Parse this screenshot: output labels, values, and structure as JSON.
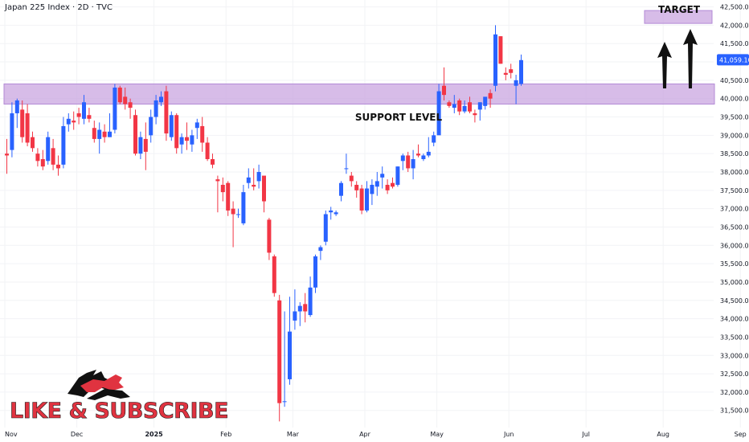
{
  "header": {
    "title": "Japan 225 Index · 2D · TVC"
  },
  "colors": {
    "up": "#2962ff",
    "down": "#f23645",
    "zone": "#c9a6e0",
    "zone_border": "#b38ad6",
    "price_badge": "#2962ff"
  },
  "annotations": {
    "support_label": "SUPPORT LEVEL",
    "target_label": "TARGET",
    "brand_text": "LIKE & SUBSCRIBE",
    "brand_logo": "bull-bear-logo"
  },
  "chart_data": {
    "type": "candlestick",
    "title": "Japan 225 Index · 2D · TVC",
    "ylim": [
      31100,
      42600
    ],
    "y_ticks": [
      31500,
      32000,
      32500,
      33000,
      33500,
      34000,
      34500,
      35000,
      35500,
      36000,
      36500,
      37000,
      37500,
      38000,
      38500,
      39000,
      39500,
      40000,
      40500,
      41000,
      41500,
      42000,
      42500
    ],
    "y_tick_labels": [
      "31,500.00",
      "32,000.00",
      "32,500.00",
      "33,000.00",
      "33,500.00",
      "34,000.00",
      "34,500.00",
      "35,000.00",
      "35,500.00",
      "36,000.00",
      "36,500.00",
      "37,000.00",
      "37,500.00",
      "38,000.00",
      "38,500.00",
      "39,000.00",
      "39,500.00",
      "40,000.00",
      "40,500.00",
      "41,000.00",
      "41,500.00",
      "42,000.00",
      "42,500.00"
    ],
    "x_ticks": [
      {
        "label": "Nov",
        "index": 0
      },
      {
        "label": "Dec",
        "index": 14
      },
      {
        "label": "2025",
        "index": 29
      },
      {
        "label": "Feb",
        "index": 43
      },
      {
        "label": "Mar",
        "index": 56
      },
      {
        "label": "Apr",
        "index": 70
      },
      {
        "label": "May",
        "index": 84
      },
      {
        "label": "Jun",
        "index": 98
      },
      {
        "label": "Jul",
        "index": 113
      },
      {
        "label": "Aug",
        "index": 128
      },
      {
        "label": "Sep",
        "index": 143
      }
    ],
    "last_price": 41059.1,
    "last_price_label": "41,059.10",
    "support_zone": [
      39850,
      40400
    ],
    "target_zone": [
      42050,
      42400
    ],
    "candles": [
      {
        "o": 38500,
        "h": 38900,
        "l": 37950,
        "c": 38450
      },
      {
        "o": 38600,
        "h": 39900,
        "l": 38400,
        "c": 39600
      },
      {
        "o": 39600,
        "h": 40000,
        "l": 39200,
        "c": 39950
      },
      {
        "o": 39700,
        "h": 39950,
        "l": 38800,
        "c": 38950
      },
      {
        "o": 39600,
        "h": 39850,
        "l": 38700,
        "c": 38800
      },
      {
        "o": 38950,
        "h": 39100,
        "l": 38550,
        "c": 38650
      },
      {
        "o": 38500,
        "h": 38650,
        "l": 38150,
        "c": 38300
      },
      {
        "o": 38350,
        "h": 38600,
        "l": 38050,
        "c": 38150
      },
      {
        "o": 38300,
        "h": 39100,
        "l": 38200,
        "c": 38950
      },
      {
        "o": 38650,
        "h": 38900,
        "l": 38050,
        "c": 38200
      },
      {
        "o": 38200,
        "h": 38450,
        "l": 37900,
        "c": 38100
      },
      {
        "o": 38200,
        "h": 39500,
        "l": 38100,
        "c": 39250
      },
      {
        "o": 39300,
        "h": 39600,
        "l": 39100,
        "c": 39450
      },
      {
        "o": 39400,
        "h": 39650,
        "l": 39150,
        "c": 39350
      },
      {
        "o": 39600,
        "h": 39750,
        "l": 39300,
        "c": 39500
      },
      {
        "o": 39450,
        "h": 40100,
        "l": 39300,
        "c": 39900
      },
      {
        "o": 39550,
        "h": 39750,
        "l": 39350,
        "c": 39450
      },
      {
        "o": 39200,
        "h": 39400,
        "l": 38800,
        "c": 38900
      },
      {
        "o": 38900,
        "h": 39350,
        "l": 38500,
        "c": 39150
      },
      {
        "o": 39100,
        "h": 39300,
        "l": 38800,
        "c": 38950
      },
      {
        "o": 38950,
        "h": 39600,
        "l": 38950,
        "c": 39100
      },
      {
        "o": 39150,
        "h": 40400,
        "l": 39050,
        "c": 40300
      },
      {
        "o": 40300,
        "h": 40350,
        "l": 39850,
        "c": 39900
      },
      {
        "o": 40050,
        "h": 40300,
        "l": 39700,
        "c": 39850
      },
      {
        "o": 39900,
        "h": 40000,
        "l": 39450,
        "c": 39750
      },
      {
        "o": 39550,
        "h": 39700,
        "l": 38450,
        "c": 38500
      },
      {
        "o": 38500,
        "h": 39100,
        "l": 38350,
        "c": 38950
      },
      {
        "o": 38900,
        "h": 39350,
        "l": 38050,
        "c": 38550
      },
      {
        "o": 39000,
        "h": 39700,
        "l": 38800,
        "c": 39500
      },
      {
        "o": 39500,
        "h": 40100,
        "l": 39300,
        "c": 39950
      },
      {
        "o": 39900,
        "h": 40200,
        "l": 39800,
        "c": 40050
      },
      {
        "o": 40200,
        "h": 40350,
        "l": 38850,
        "c": 39050
      },
      {
        "o": 38950,
        "h": 39650,
        "l": 38850,
        "c": 39550
      },
      {
        "o": 39550,
        "h": 39600,
        "l": 38500,
        "c": 38650
      },
      {
        "o": 38750,
        "h": 39050,
        "l": 38500,
        "c": 38950
      },
      {
        "o": 38950,
        "h": 39350,
        "l": 38600,
        "c": 38850
      },
      {
        "o": 38750,
        "h": 39150,
        "l": 38550,
        "c": 39000
      },
      {
        "o": 39200,
        "h": 39450,
        "l": 38900,
        "c": 39350
      },
      {
        "o": 39250,
        "h": 39500,
        "l": 38550,
        "c": 38800
      },
      {
        "o": 38800,
        "h": 38950,
        "l": 38300,
        "c": 38350
      },
      {
        "o": 38350,
        "h": 38500,
        "l": 38100,
        "c": 38200
      },
      {
        "o": 37800,
        "h": 37900,
        "l": 36900,
        "c": 37750
      },
      {
        "o": 37650,
        "h": 37850,
        "l": 37200,
        "c": 37450
      },
      {
        "o": 37700,
        "h": 37750,
        "l": 36800,
        "c": 36950
      },
      {
        "o": 37000,
        "h": 37200,
        "l": 35950,
        "c": 36850
      },
      {
        "o": 36850,
        "h": 37000,
        "l": 36750,
        "c": 36850
      },
      {
        "o": 36600,
        "h": 37650,
        "l": 36550,
        "c": 37450
      },
      {
        "o": 37700,
        "h": 38100,
        "l": 37550,
        "c": 37850
      },
      {
        "o": 37650,
        "h": 38100,
        "l": 37500,
        "c": 37600
      },
      {
        "o": 37750,
        "h": 38200,
        "l": 37550,
        "c": 38000
      },
      {
        "o": 37900,
        "h": 37850,
        "l": 36900,
        "c": 37200
      },
      {
        "o": 36700,
        "h": 36750,
        "l": 35600,
        "c": 35800
      },
      {
        "o": 35700,
        "h": 35750,
        "l": 34600,
        "c": 34700
      },
      {
        "o": 34500,
        "h": 34650,
        "l": 31200,
        "c": 31700
      },
      {
        "o": 31750,
        "h": 34200,
        "l": 31600,
        "c": 31750
      },
      {
        "o": 32350,
        "h": 34600,
        "l": 32200,
        "c": 33650
      },
      {
        "o": 33950,
        "h": 34800,
        "l": 33700,
        "c": 34200
      },
      {
        "o": 34200,
        "h": 34450,
        "l": 33800,
        "c": 34350
      },
      {
        "o": 34400,
        "h": 34700,
        "l": 33900,
        "c": 34200
      },
      {
        "o": 34100,
        "h": 35150,
        "l": 34050,
        "c": 34850
      },
      {
        "o": 34850,
        "h": 35750,
        "l": 34700,
        "c": 35700
      },
      {
        "o": 35850,
        "h": 36000,
        "l": 35600,
        "c": 35950
      },
      {
        "o": 36100,
        "h": 36950,
        "l": 36000,
        "c": 36850
      },
      {
        "o": 36900,
        "h": 37050,
        "l": 36700,
        "c": 36950
      },
      {
        "o": 36850,
        "h": 36950,
        "l": 36800,
        "c": 36900
      },
      {
        "o": 37350,
        "h": 37750,
        "l": 37200,
        "c": 37700
      },
      {
        "o": 38100,
        "h": 38500,
        "l": 37950,
        "c": 38100
      },
      {
        "o": 37900,
        "h": 38000,
        "l": 37600,
        "c": 37750
      },
      {
        "o": 37650,
        "h": 37750,
        "l": 37300,
        "c": 37500
      },
      {
        "o": 37550,
        "h": 37650,
        "l": 36850,
        "c": 36950
      },
      {
        "o": 36950,
        "h": 37750,
        "l": 36900,
        "c": 37550
      },
      {
        "o": 37400,
        "h": 37800,
        "l": 37100,
        "c": 37650
      },
      {
        "o": 37600,
        "h": 38000,
        "l": 37350,
        "c": 37750
      },
      {
        "o": 37850,
        "h": 38150,
        "l": 37550,
        "c": 37950
      },
      {
        "o": 37650,
        "h": 37800,
        "l": 37400,
        "c": 37500
      },
      {
        "o": 37700,
        "h": 37850,
        "l": 37550,
        "c": 37600
      },
      {
        "o": 37650,
        "h": 38150,
        "l": 37600,
        "c": 38150
      },
      {
        "o": 38300,
        "h": 38500,
        "l": 38050,
        "c": 38450
      },
      {
        "o": 38450,
        "h": 38550,
        "l": 38000,
        "c": 38100
      },
      {
        "o": 38100,
        "h": 38600,
        "l": 37800,
        "c": 38350
      },
      {
        "o": 38500,
        "h": 38750,
        "l": 38400,
        "c": 38450
      },
      {
        "o": 38350,
        "h": 38500,
        "l": 38300,
        "c": 38450
      },
      {
        "o": 38450,
        "h": 38950,
        "l": 38400,
        "c": 38550
      },
      {
        "o": 38800,
        "h": 39100,
        "l": 38700,
        "c": 39000
      },
      {
        "o": 39000,
        "h": 40400,
        "l": 39050,
        "c": 40200
      },
      {
        "o": 40350,
        "h": 40850,
        "l": 39950,
        "c": 40100
      },
      {
        "o": 39900,
        "h": 39950,
        "l": 39750,
        "c": 39800
      },
      {
        "o": 39750,
        "h": 40100,
        "l": 39600,
        "c": 39850
      },
      {
        "o": 39950,
        "h": 40000,
        "l": 39550,
        "c": 39650
      },
      {
        "o": 39650,
        "h": 39950,
        "l": 39600,
        "c": 39800
      },
      {
        "o": 39900,
        "h": 40050,
        "l": 39600,
        "c": 39650
      },
      {
        "o": 39600,
        "h": 39700,
        "l": 39350,
        "c": 39550
      },
      {
        "o": 39700,
        "h": 39900,
        "l": 39400,
        "c": 39900
      },
      {
        "o": 39800,
        "h": 40000,
        "l": 39700,
        "c": 40050
      },
      {
        "o": 40150,
        "h": 40250,
        "l": 39750,
        "c": 40000
      },
      {
        "o": 40350,
        "h": 42000,
        "l": 40200,
        "c": 41750
      },
      {
        "o": 41700,
        "h": 41700,
        "l": 40950,
        "c": 40950
      },
      {
        "o": 40700,
        "h": 40850,
        "l": 40500,
        "c": 40650
      },
      {
        "o": 40800,
        "h": 40950,
        "l": 40550,
        "c": 40700
      },
      {
        "o": 40350,
        "h": 40650,
        "l": 39850,
        "c": 40500
      },
      {
        "o": 40400,
        "h": 41200,
        "l": 40350,
        "c": 41050
      }
    ]
  }
}
